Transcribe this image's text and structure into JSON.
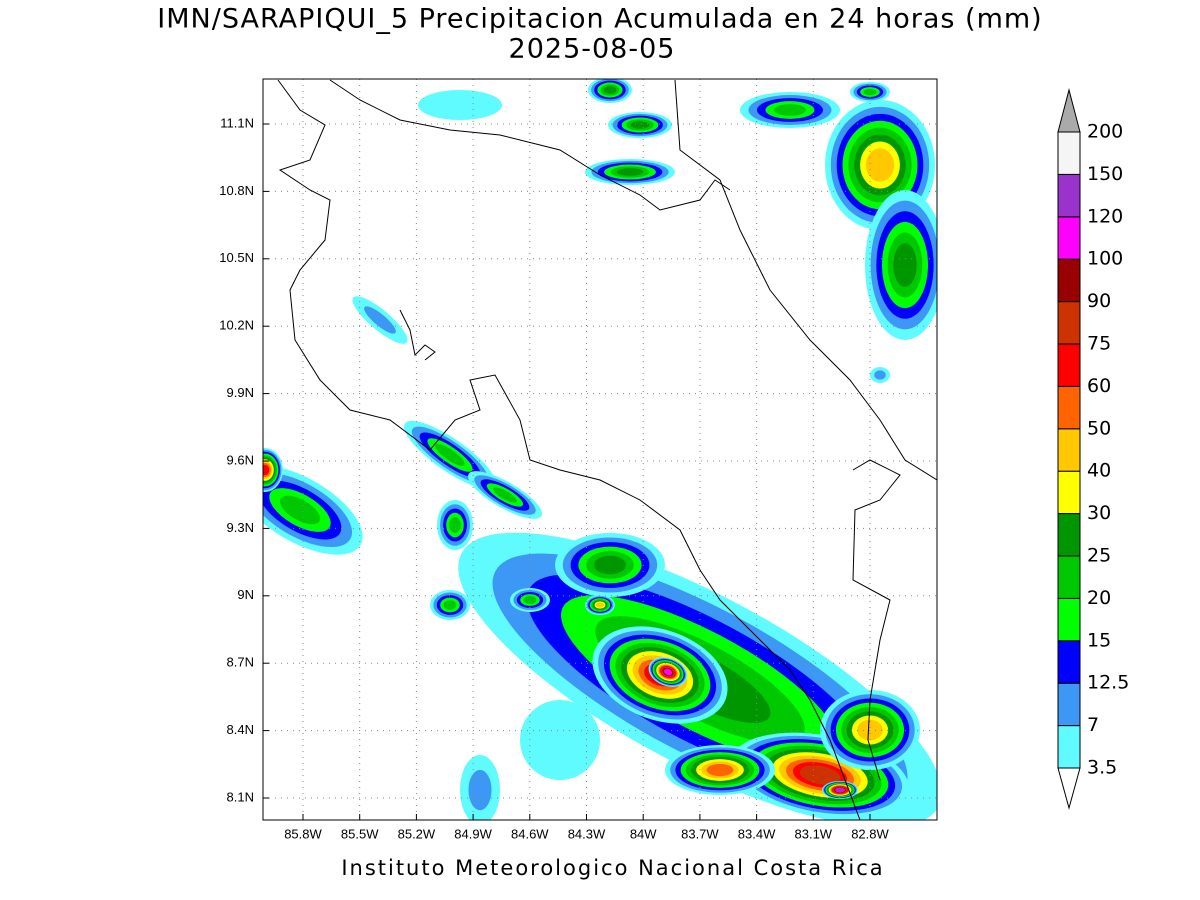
{
  "title": "IMN/SARAPIQUI_5 Precipitacion Acumulada en 24 horas (mm)",
  "subtitle": "2025-08-05",
  "map": {
    "lat_labels": [
      "11.1N",
      "10.8N",
      "10.5N",
      "10.2N",
      "9.9N",
      "9.6N",
      "9.3N",
      "9N",
      "8.7N",
      "8.4N",
      "8.1N"
    ],
    "lon_labels": [
      "85.8W",
      "85.5W",
      "85.2W",
      "84.9W",
      "84.6W",
      "84.3W",
      "84W",
      "83.7W",
      "83.4W",
      "83.1W",
      "82.8W"
    ]
  },
  "colorbar": {
    "levels": [
      3.5,
      7,
      12.5,
      15,
      20,
      25,
      30,
      40,
      50,
      60,
      75,
      90,
      100,
      120,
      150,
      200
    ],
    "colors": [
      "#ffffff",
      "#5ffbff",
      "#3d97f5",
      "#0000ff",
      "#00ff00",
      "#00c800",
      "#009600",
      "#ffff00",
      "#ffc800",
      "#ff6400",
      "#ff0000",
      "#cc3300",
      "#990000",
      "#ff00ff",
      "#9933cc",
      "#f5f5f5",
      "#aaaaaa"
    ]
  },
  "footer": "Instituto Meteorologico Nacional Costa Rica"
}
